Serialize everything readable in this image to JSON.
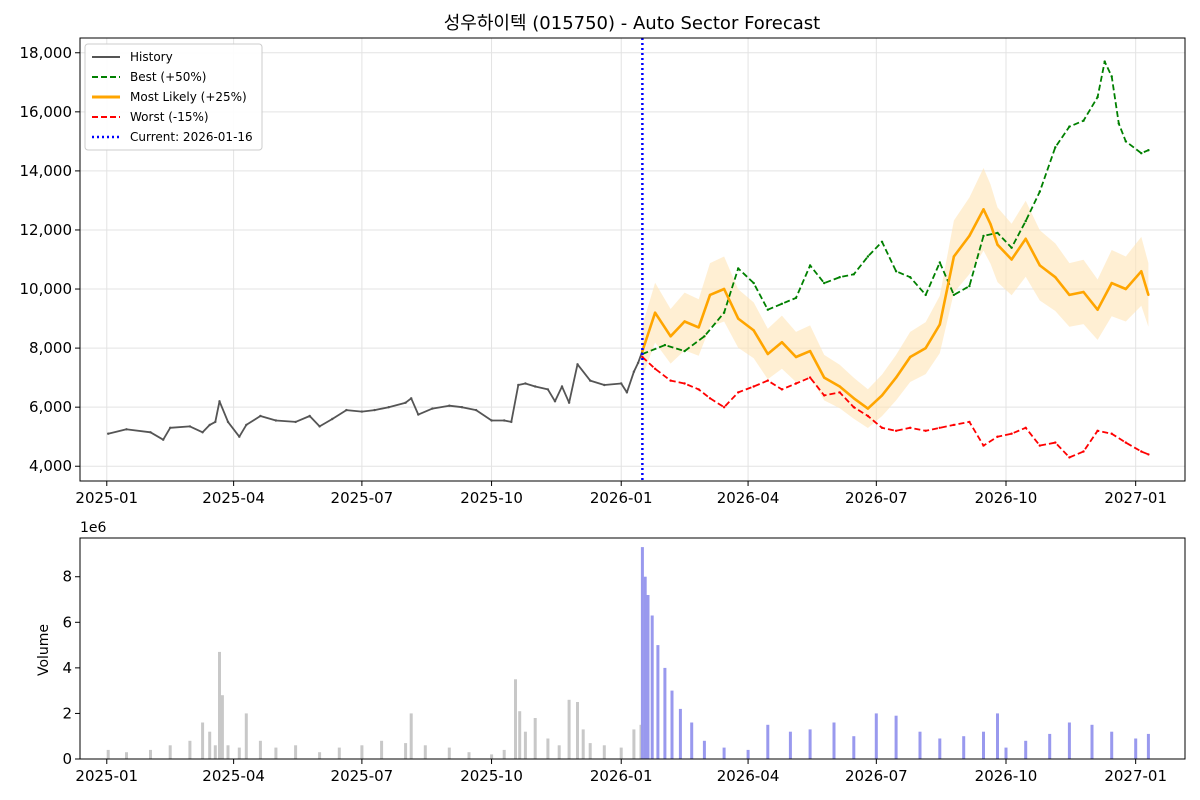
{
  "chart_data": [
    {
      "type": "line",
      "title": "성우하이텍 (015750) - Auto Sector Forecast",
      "x_ticks": [
        "2025-01",
        "2025-04",
        "2025-07",
        "2025-10",
        "2026-01",
        "2026-04",
        "2026-07",
        "2026-10",
        "2027-01"
      ],
      "y_ticks": [
        "4,000",
        "6,000",
        "8,000",
        "10,000",
        "12,000",
        "14,000",
        "16,000",
        "18,000"
      ],
      "ylim": [
        3500,
        18500
      ],
      "xlim": [
        "2024-12-13",
        "2027-02-05"
      ],
      "grid": true,
      "legend_position": "top-left",
      "current_marker": {
        "date": "2026-01-16",
        "label": "Current: 2026-01-16",
        "color": "#0000ff",
        "style": "dotted"
      },
      "series": [
        {
          "name": "History",
          "color": "#555555",
          "style": "solid",
          "x": [
            "2025-01-02",
            "2025-01-15",
            "2025-02-01",
            "2025-02-10",
            "2025-02-15",
            "2025-03-01",
            "2025-03-10",
            "2025-03-15",
            "2025-03-19",
            "2025-03-22",
            "2025-03-28",
            "2025-04-05",
            "2025-04-10",
            "2025-04-20",
            "2025-05-01",
            "2025-05-15",
            "2025-05-25",
            "2025-06-01",
            "2025-06-10",
            "2025-06-20",
            "2025-07-01",
            "2025-07-10",
            "2025-07-20",
            "2025-08-01",
            "2025-08-05",
            "2025-08-10",
            "2025-08-20",
            "2025-09-01",
            "2025-09-10",
            "2025-09-20",
            "2025-10-01",
            "2025-10-10",
            "2025-10-15",
            "2025-10-20",
            "2025-10-25",
            "2025-11-01",
            "2025-11-10",
            "2025-11-15",
            "2025-11-20",
            "2025-11-25",
            "2025-12-01",
            "2025-12-10",
            "2025-12-20",
            "2026-01-01",
            "2026-01-05",
            "2026-01-10",
            "2026-01-13",
            "2026-01-16"
          ],
          "values": [
            5100,
            5250,
            5150,
            4900,
            5300,
            5350,
            5150,
            5400,
            5500,
            6200,
            5500,
            5000,
            5400,
            5700,
            5550,
            5500,
            5700,
            5350,
            5600,
            5900,
            5850,
            5900,
            6000,
            6150,
            6300,
            5750,
            5950,
            6050,
            6000,
            5900,
            5550,
            5550,
            5500,
            6750,
            6800,
            6700,
            6600,
            6200,
            6700,
            6150,
            7450,
            6900,
            6750,
            6800,
            6500,
            7200,
            7500,
            7900
          ]
        },
        {
          "name": "Best (+50%)",
          "color": "#008000",
          "style": "dashed",
          "x": [
            "2026-01-16",
            "2026-02-01",
            "2026-02-15",
            "2026-03-01",
            "2026-03-15",
            "2026-03-25",
            "2026-04-05",
            "2026-04-15",
            "2026-04-25",
            "2026-05-05",
            "2026-05-15",
            "2026-05-25",
            "2026-06-05",
            "2026-06-15",
            "2026-06-25",
            "2026-07-05",
            "2026-07-15",
            "2026-07-25",
            "2026-08-05",
            "2026-08-15",
            "2026-08-25",
            "2026-09-05",
            "2026-09-15",
            "2026-09-25",
            "2026-10-05",
            "2026-10-15",
            "2026-10-25",
            "2026-11-05",
            "2026-11-15",
            "2026-11-25",
            "2026-12-05",
            "2026-12-10",
            "2026-12-15",
            "2026-12-20",
            "2026-12-25",
            "2027-01-05",
            "2027-01-10"
          ],
          "values": [
            7800,
            8100,
            7900,
            8400,
            9200,
            10700,
            10200,
            9300,
            9500,
            9700,
            10800,
            10200,
            10400,
            10500,
            11100,
            11600,
            10600,
            10400,
            9800,
            10900,
            9800,
            10100,
            11800,
            11900,
            11400,
            12300,
            13300,
            14800,
            15500,
            15700,
            16500,
            17700,
            17200,
            15600,
            15000,
            14600,
            14700
          ]
        },
        {
          "name": "Most Likely (+25%)",
          "color": "#ffa500",
          "style": "solid",
          "band_color": "#ffe4b5",
          "x": [
            "2026-01-16",
            "2026-01-25",
            "2026-02-05",
            "2026-02-15",
            "2026-02-25",
            "2026-03-05",
            "2026-03-15",
            "2026-03-25",
            "2026-04-05",
            "2026-04-15",
            "2026-04-25",
            "2026-05-05",
            "2026-05-15",
            "2026-05-25",
            "2026-06-05",
            "2026-06-15",
            "2026-06-25",
            "2026-07-05",
            "2026-07-15",
            "2026-07-25",
            "2026-08-05",
            "2026-08-15",
            "2026-08-25",
            "2026-09-05",
            "2026-09-15",
            "2026-09-20",
            "2026-09-25",
            "2026-10-05",
            "2026-10-15",
            "2026-10-25",
            "2026-11-05",
            "2026-11-15",
            "2026-11-25",
            "2026-12-05",
            "2026-12-15",
            "2026-12-25",
            "2027-01-05",
            "2027-01-10"
          ],
          "values": [
            7900,
            9200,
            8400,
            8900,
            8700,
            9800,
            10000,
            9000,
            8600,
            7800,
            8200,
            7700,
            7900,
            7000,
            6700,
            6300,
            5950,
            6400,
            7000,
            7700,
            8000,
            8800,
            11100,
            11800,
            12700,
            12200,
            11500,
            11000,
            11700,
            10800,
            10400,
            9800,
            9900,
            9300,
            10200,
            10000,
            10600,
            9800
          ]
        },
        {
          "name": "Worst (-15%)",
          "color": "#ff0000",
          "style": "dashed",
          "x": [
            "2026-01-16",
            "2026-01-25",
            "2026-02-05",
            "2026-02-15",
            "2026-02-25",
            "2026-03-05",
            "2026-03-15",
            "2026-03-25",
            "2026-04-05",
            "2026-04-15",
            "2026-04-25",
            "2026-05-05",
            "2026-05-15",
            "2026-05-25",
            "2026-06-05",
            "2026-06-15",
            "2026-06-25",
            "2026-07-05",
            "2026-07-15",
            "2026-07-25",
            "2026-08-05",
            "2026-08-15",
            "2026-08-25",
            "2026-09-05",
            "2026-09-15",
            "2026-09-25",
            "2026-10-05",
            "2026-10-15",
            "2026-10-25",
            "2026-11-05",
            "2026-11-15",
            "2026-11-25",
            "2026-12-05",
            "2026-12-15",
            "2026-12-25",
            "2027-01-05",
            "2027-01-10"
          ],
          "values": [
            7700,
            7300,
            6900,
            6800,
            6600,
            6300,
            6000,
            6500,
            6700,
            6900,
            6600,
            6800,
            7000,
            6400,
            6500,
            6000,
            5700,
            5300,
            5200,
            5300,
            5200,
            5300,
            5400,
            5500,
            4700,
            5000,
            5100,
            5300,
            4700,
            4800,
            4300,
            4500,
            5200,
            5100,
            4800,
            4500,
            4400
          ]
        }
      ]
    },
    {
      "type": "bar",
      "ylabel": "Volume",
      "y_multiplier": "1e6",
      "x_ticks": [
        "2025-01",
        "2025-04",
        "2025-07",
        "2025-10",
        "2026-01",
        "2026-04",
        "2026-07",
        "2026-10",
        "2027-01"
      ],
      "y_ticks": [
        "0",
        "2",
        "4",
        "6",
        "8"
      ],
      "ylim": [
        0,
        9.7
      ],
      "history_color": "#c8c8c8",
      "forecast_color": "#9999ee",
      "history": {
        "x": [
          "2025-01-02",
          "2025-01-15",
          "2025-02-01",
          "2025-02-15",
          "2025-03-01",
          "2025-03-10",
          "2025-03-15",
          "2025-03-19",
          "2025-03-22",
          "2025-03-24",
          "2025-03-28",
          "2025-04-05",
          "2025-04-10",
          "2025-04-20",
          "2025-05-01",
          "2025-05-15",
          "2025-06-01",
          "2025-06-15",
          "2025-07-01",
          "2025-07-15",
          "2025-08-01",
          "2025-08-05",
          "2025-08-15",
          "2025-09-01",
          "2025-09-15",
          "2025-10-01",
          "2025-10-10",
          "2025-10-18",
          "2025-10-21",
          "2025-10-25",
          "2025-11-01",
          "2025-11-10",
          "2025-11-18",
          "2025-11-25",
          "2025-12-01",
          "2025-12-05",
          "2025-12-10",
          "2025-12-20",
          "2026-01-01",
          "2026-01-10",
          "2026-01-15"
        ],
        "values": [
          0.4,
          0.3,
          0.4,
          0.6,
          0.8,
          1.6,
          1.2,
          0.6,
          4.7,
          2.8,
          0.6,
          0.5,
          2.0,
          0.8,
          0.5,
          0.6,
          0.3,
          0.5,
          0.6,
          0.8,
          0.7,
          2.0,
          0.6,
          0.5,
          0.3,
          0.2,
          0.4,
          3.5,
          2.1,
          1.2,
          1.8,
          0.9,
          0.6,
          2.6,
          2.5,
          1.3,
          0.7,
          0.6,
          0.5,
          1.3,
          1.5
        ]
      },
      "forecast": {
        "x": [
          "2026-01-16",
          "2026-01-18",
          "2026-01-20",
          "2026-01-23",
          "2026-01-27",
          "2026-02-01",
          "2026-02-06",
          "2026-02-12",
          "2026-02-20",
          "2026-03-01",
          "2026-03-15",
          "2026-04-01",
          "2026-04-15",
          "2026-05-01",
          "2026-05-15",
          "2026-06-01",
          "2026-06-15",
          "2026-07-01",
          "2026-07-15",
          "2026-08-01",
          "2026-08-15",
          "2026-09-01",
          "2026-09-15",
          "2026-09-25",
          "2026-10-01",
          "2026-10-15",
          "2026-11-01",
          "2026-11-15",
          "2026-12-01",
          "2026-12-15",
          "2027-01-01",
          "2027-01-10"
        ],
        "values": [
          9.3,
          8.0,
          7.2,
          6.3,
          5.0,
          4.0,
          3.0,
          2.2,
          1.6,
          0.8,
          0.5,
          0.4,
          1.5,
          1.2,
          1.3,
          1.6,
          1.0,
          2.0,
          1.9,
          1.2,
          0.9,
          1.0,
          1.2,
          2.0,
          0.5,
          0.8,
          1.1,
          1.6,
          1.5,
          1.2,
          0.9,
          1.1
        ]
      }
    }
  ]
}
